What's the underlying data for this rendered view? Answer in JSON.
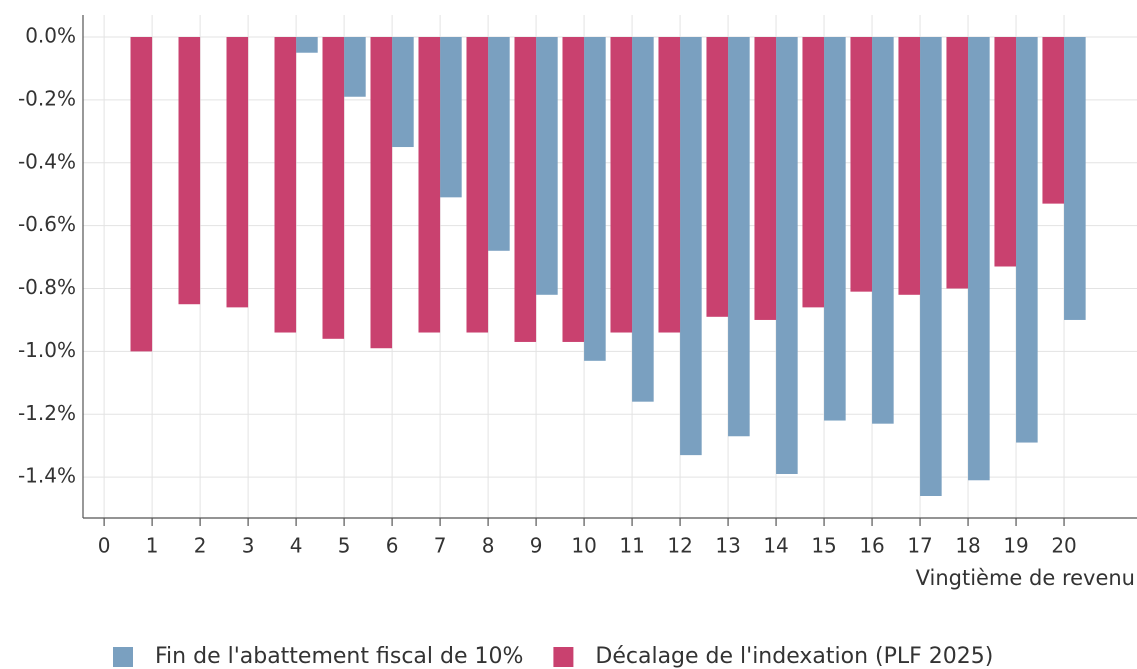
{
  "chart_data": {
    "type": "bar",
    "x_label": "Vingtième de revenu",
    "x": [
      1,
      2,
      3,
      4,
      5,
      6,
      7,
      8,
      9,
      10,
      11,
      12,
      13,
      14,
      15,
      16,
      17,
      18,
      19,
      20
    ],
    "series": [
      {
        "name": "Fin de l'abattement fiscal de 10%",
        "color": "#7aa0c0",
        "values": [
          null,
          null,
          null,
          -0.05,
          -0.19,
          -0.35,
          -0.51,
          -0.68,
          -0.82,
          -1.03,
          -1.16,
          -1.33,
          -1.27,
          -1.39,
          -1.22,
          -1.23,
          -1.46,
          -1.41,
          -1.29,
          -0.9
        ]
      },
      {
        "name": "Décalage de l'indexation (PLF 2025)",
        "color": "#c9416f",
        "values": [
          -1.0,
          -0.85,
          -0.86,
          -0.94,
          -0.96,
          -0.99,
          -0.94,
          -0.94,
          -0.97,
          -0.97,
          -0.94,
          -0.94,
          -0.89,
          -0.9,
          -0.86,
          -0.81,
          -0.82,
          -0.8,
          -0.73,
          -0.53
        ]
      }
    ],
    "xlim": [
      -0.44,
      21.52
    ],
    "xticks": [
      0,
      1,
      2,
      3,
      4,
      5,
      6,
      7,
      8,
      9,
      10,
      11,
      12,
      13,
      14,
      15,
      16,
      17,
      18,
      19,
      20
    ],
    "ylim": [
      -1.53,
      0.07
    ],
    "yticks": [
      {
        "value": 0,
        "label": "0.0%"
      },
      {
        "value": -0.2,
        "label": "-0.2%"
      },
      {
        "value": -0.4,
        "label": "-0.4%"
      },
      {
        "value": -0.6,
        "label": "-0.6%"
      },
      {
        "value": -0.8,
        "label": "-0.8%"
      },
      {
        "value": -1.0,
        "label": "-1.0%"
      },
      {
        "value": -1.2,
        "label": "-1.2%"
      },
      {
        "value": -1.4,
        "label": "-1.4%"
      }
    ],
    "grid": true,
    "legend": "bottom"
  }
}
